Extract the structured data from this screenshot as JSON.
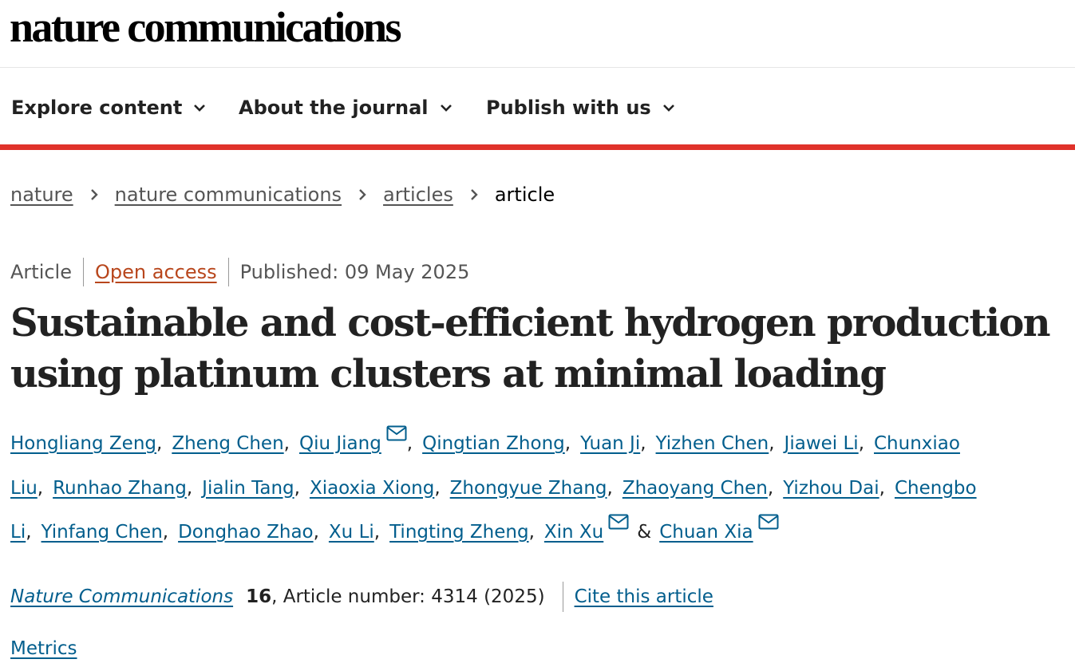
{
  "header": {
    "logo": "nature communications"
  },
  "nav": {
    "items": [
      {
        "label": "Explore content"
      },
      {
        "label": "About the journal"
      },
      {
        "label": "Publish with us"
      }
    ]
  },
  "breadcrumb": {
    "items": [
      "nature",
      "nature communications",
      "articles"
    ],
    "current": "article"
  },
  "article": {
    "type": "Article",
    "access": "Open access",
    "published": "Published: 09 May 2025",
    "title": "Sustainable and cost-efficient hydrogen production using platinum clusters at minimal loading",
    "authors": [
      {
        "name": "Hongliang Zeng",
        "corresponding": false
      },
      {
        "name": "Zheng Chen",
        "corresponding": false
      },
      {
        "name": "Qiu Jiang",
        "corresponding": true
      },
      {
        "name": "Qingtian Zhong",
        "corresponding": false
      },
      {
        "name": "Yuan Ji",
        "corresponding": false
      },
      {
        "name": "Yizhen Chen",
        "corresponding": false
      },
      {
        "name": "Jiawei Li",
        "corresponding": false
      },
      {
        "name": "Chunxiao Liu",
        "corresponding": false
      },
      {
        "name": "Runhao Zhang",
        "corresponding": false
      },
      {
        "name": "Jialin Tang",
        "corresponding": false
      },
      {
        "name": "Xiaoxia Xiong",
        "corresponding": false
      },
      {
        "name": "Zhongyue Zhang",
        "corresponding": false
      },
      {
        "name": "Zhaoyang Chen",
        "corresponding": false
      },
      {
        "name": "Yizhou Dai",
        "corresponding": false
      },
      {
        "name": "Chengbo Li",
        "corresponding": false
      },
      {
        "name": "Yinfang Chen",
        "corresponding": false
      },
      {
        "name": "Donghao Zhao",
        "corresponding": false
      },
      {
        "name": "Xu Li",
        "corresponding": false
      },
      {
        "name": "Tingting Zheng",
        "corresponding": false
      },
      {
        "name": "Xin Xu",
        "corresponding": true
      },
      {
        "name": "Chuan Xia",
        "corresponding": true
      }
    ],
    "author_separator": ",",
    "author_final_separator": "&",
    "journal": "Nature Communications",
    "volume": "16",
    "article_number": ", Article number: 4314 (2025)",
    "cite_label": "Cite this article",
    "metrics_label": "Metrics"
  },
  "colors": {
    "link": "#025e8d",
    "accent_rule": "#e0322a",
    "open_access": "#b8461c",
    "text": "#222222"
  },
  "icons": {
    "nav_dropdown": "chevron-down-icon",
    "breadcrumb_separator": "chevron-right-icon",
    "corresponding_author": "mail-icon"
  }
}
